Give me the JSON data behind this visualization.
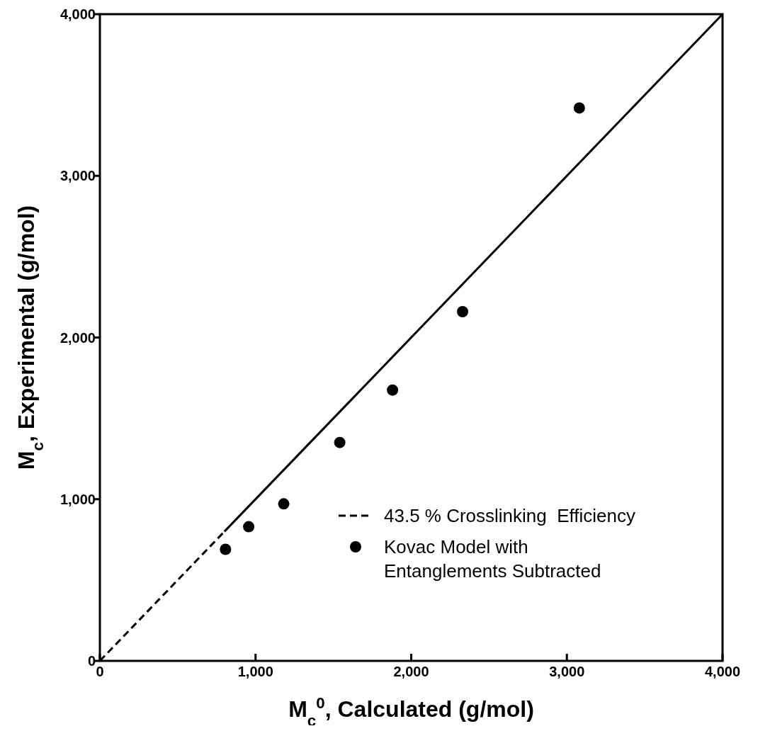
{
  "chart_data": {
    "type": "scatter",
    "xlabel": "M$_{c}$$^{0}$, Calculated (g/mol)",
    "ylabel": "M$_{c}$, Experimental (g/mol)",
    "xlim": [
      0,
      4000
    ],
    "ylim": [
      0,
      4000
    ],
    "xticks": [
      0,
      {
        "value": 1000,
        "label": "1,000"
      },
      {
        "value": 2000,
        "label": "2,000"
      },
      {
        "value": 3000,
        "label": "3,000"
      },
      {
        "value": 4000,
        "label": "4,000"
      }
    ],
    "yticks": [
      0,
      {
        "value": 1000,
        "label": "1,000"
      },
      {
        "value": 2000,
        "label": "2,000"
      },
      {
        "value": 3000,
        "label": "3,000"
      },
      {
        "value": 4000,
        "label": "4,000"
      }
    ],
    "grid": false,
    "legend": "bottom right",
    "series": [
      {
        "name": "43.5 % Crosslinking  Efficiency",
        "type": "line",
        "line_style": "dashed",
        "marker": "none",
        "color": "#000000",
        "x": [
          0,
          800
        ],
        "values": [
          0,
          800
        ]
      },
      {
        "type": "line",
        "line_style": "solid",
        "marker": "none",
        "color": "#000000",
        "x": [
          800,
          4000
        ],
        "values": [
          800,
          4000
        ]
      },
      {
        "name": "Kovac Model with\nEntanglements Subtracted",
        "marker": "circle",
        "color": "#000000",
        "x": [
          807,
          956,
          1181,
          1541,
          1880,
          2330,
          3080
        ],
        "values": [
          690,
          830,
          971,
          1351,
          1675,
          2160,
          3420
        ]
      }
    ]
  }
}
